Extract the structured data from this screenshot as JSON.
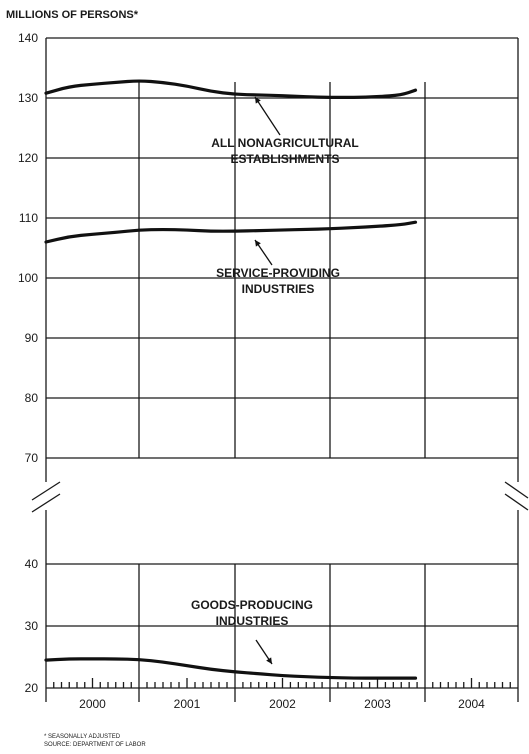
{
  "chart_data": {
    "type": "line",
    "title": "MILLIONS OF PERSONS*",
    "xlabel": "",
    "ylabel": "",
    "x_categories": [
      "2000",
      "2001",
      "2002",
      "2003",
      "2004"
    ],
    "ylim_upper": [
      70,
      140
    ],
    "ylim_lower": [
      20,
      40
    ],
    "y_ticks_upper": [
      "140",
      "130",
      "120",
      "110",
      "100",
      "90",
      "80",
      "70"
    ],
    "y_ticks_lower": [
      "40",
      "30",
      "20"
    ],
    "grid": true,
    "axis_break": true,
    "series": [
      {
        "name": "ALL NONAGRICULTURAL ESTABLISHMENTS",
        "label_lines": [
          "ALL NONAGRICULTURAL",
          "ESTABLISHMENTS"
        ],
        "x": [
          2000.0,
          2000.25,
          2000.5,
          2000.75,
          2001.0,
          2001.25,
          2001.5,
          2001.75,
          2002.0,
          2002.25,
          2002.5,
          2002.75,
          2003.0,
          2003.25,
          2003.5,
          2003.75,
          2003.9
        ],
        "y": [
          130.8,
          131.9,
          132.3,
          132.6,
          132.9,
          132.6,
          132.0,
          131.1,
          130.6,
          130.5,
          130.4,
          130.2,
          130.1,
          130.1,
          130.2,
          130.5,
          131.3
        ]
      },
      {
        "name": "SERVICE-PROVIDING INDUSTRIES",
        "label_lines": [
          "SERVICE-PROVIDING",
          "INDUSTRIES"
        ],
        "x": [
          2000.0,
          2000.25,
          2000.5,
          2000.75,
          2001.0,
          2001.25,
          2001.5,
          2001.75,
          2002.0,
          2002.25,
          2002.5,
          2002.75,
          2003.0,
          2003.25,
          2003.5,
          2003.75,
          2003.9
        ],
        "y": [
          106.0,
          106.9,
          107.3,
          107.6,
          108.0,
          108.1,
          108.0,
          107.8,
          107.8,
          107.9,
          108.0,
          108.1,
          108.2,
          108.4,
          108.6,
          108.9,
          109.3
        ]
      },
      {
        "name": "GOODS-PRODUCING INDUSTRIES",
        "label_lines": [
          "GOODS-PRODUCING",
          "INDUSTRIES"
        ],
        "x": [
          2000.0,
          2000.25,
          2000.5,
          2000.75,
          2001.0,
          2001.25,
          2001.5,
          2001.75,
          2002.0,
          2002.25,
          2002.5,
          2002.75,
          2003.0,
          2003.25,
          2003.5,
          2003.75,
          2003.9
        ],
        "y": [
          24.5,
          24.7,
          24.7,
          24.7,
          24.6,
          24.2,
          23.6,
          23.0,
          22.6,
          22.3,
          22.0,
          21.8,
          21.7,
          21.6,
          21.6,
          21.6,
          21.6
        ]
      }
    ],
    "footnotes": [
      "* SEASONALLY ADJUSTED",
      "SOURCE: DEPARTMENT OF LABOR"
    ]
  }
}
